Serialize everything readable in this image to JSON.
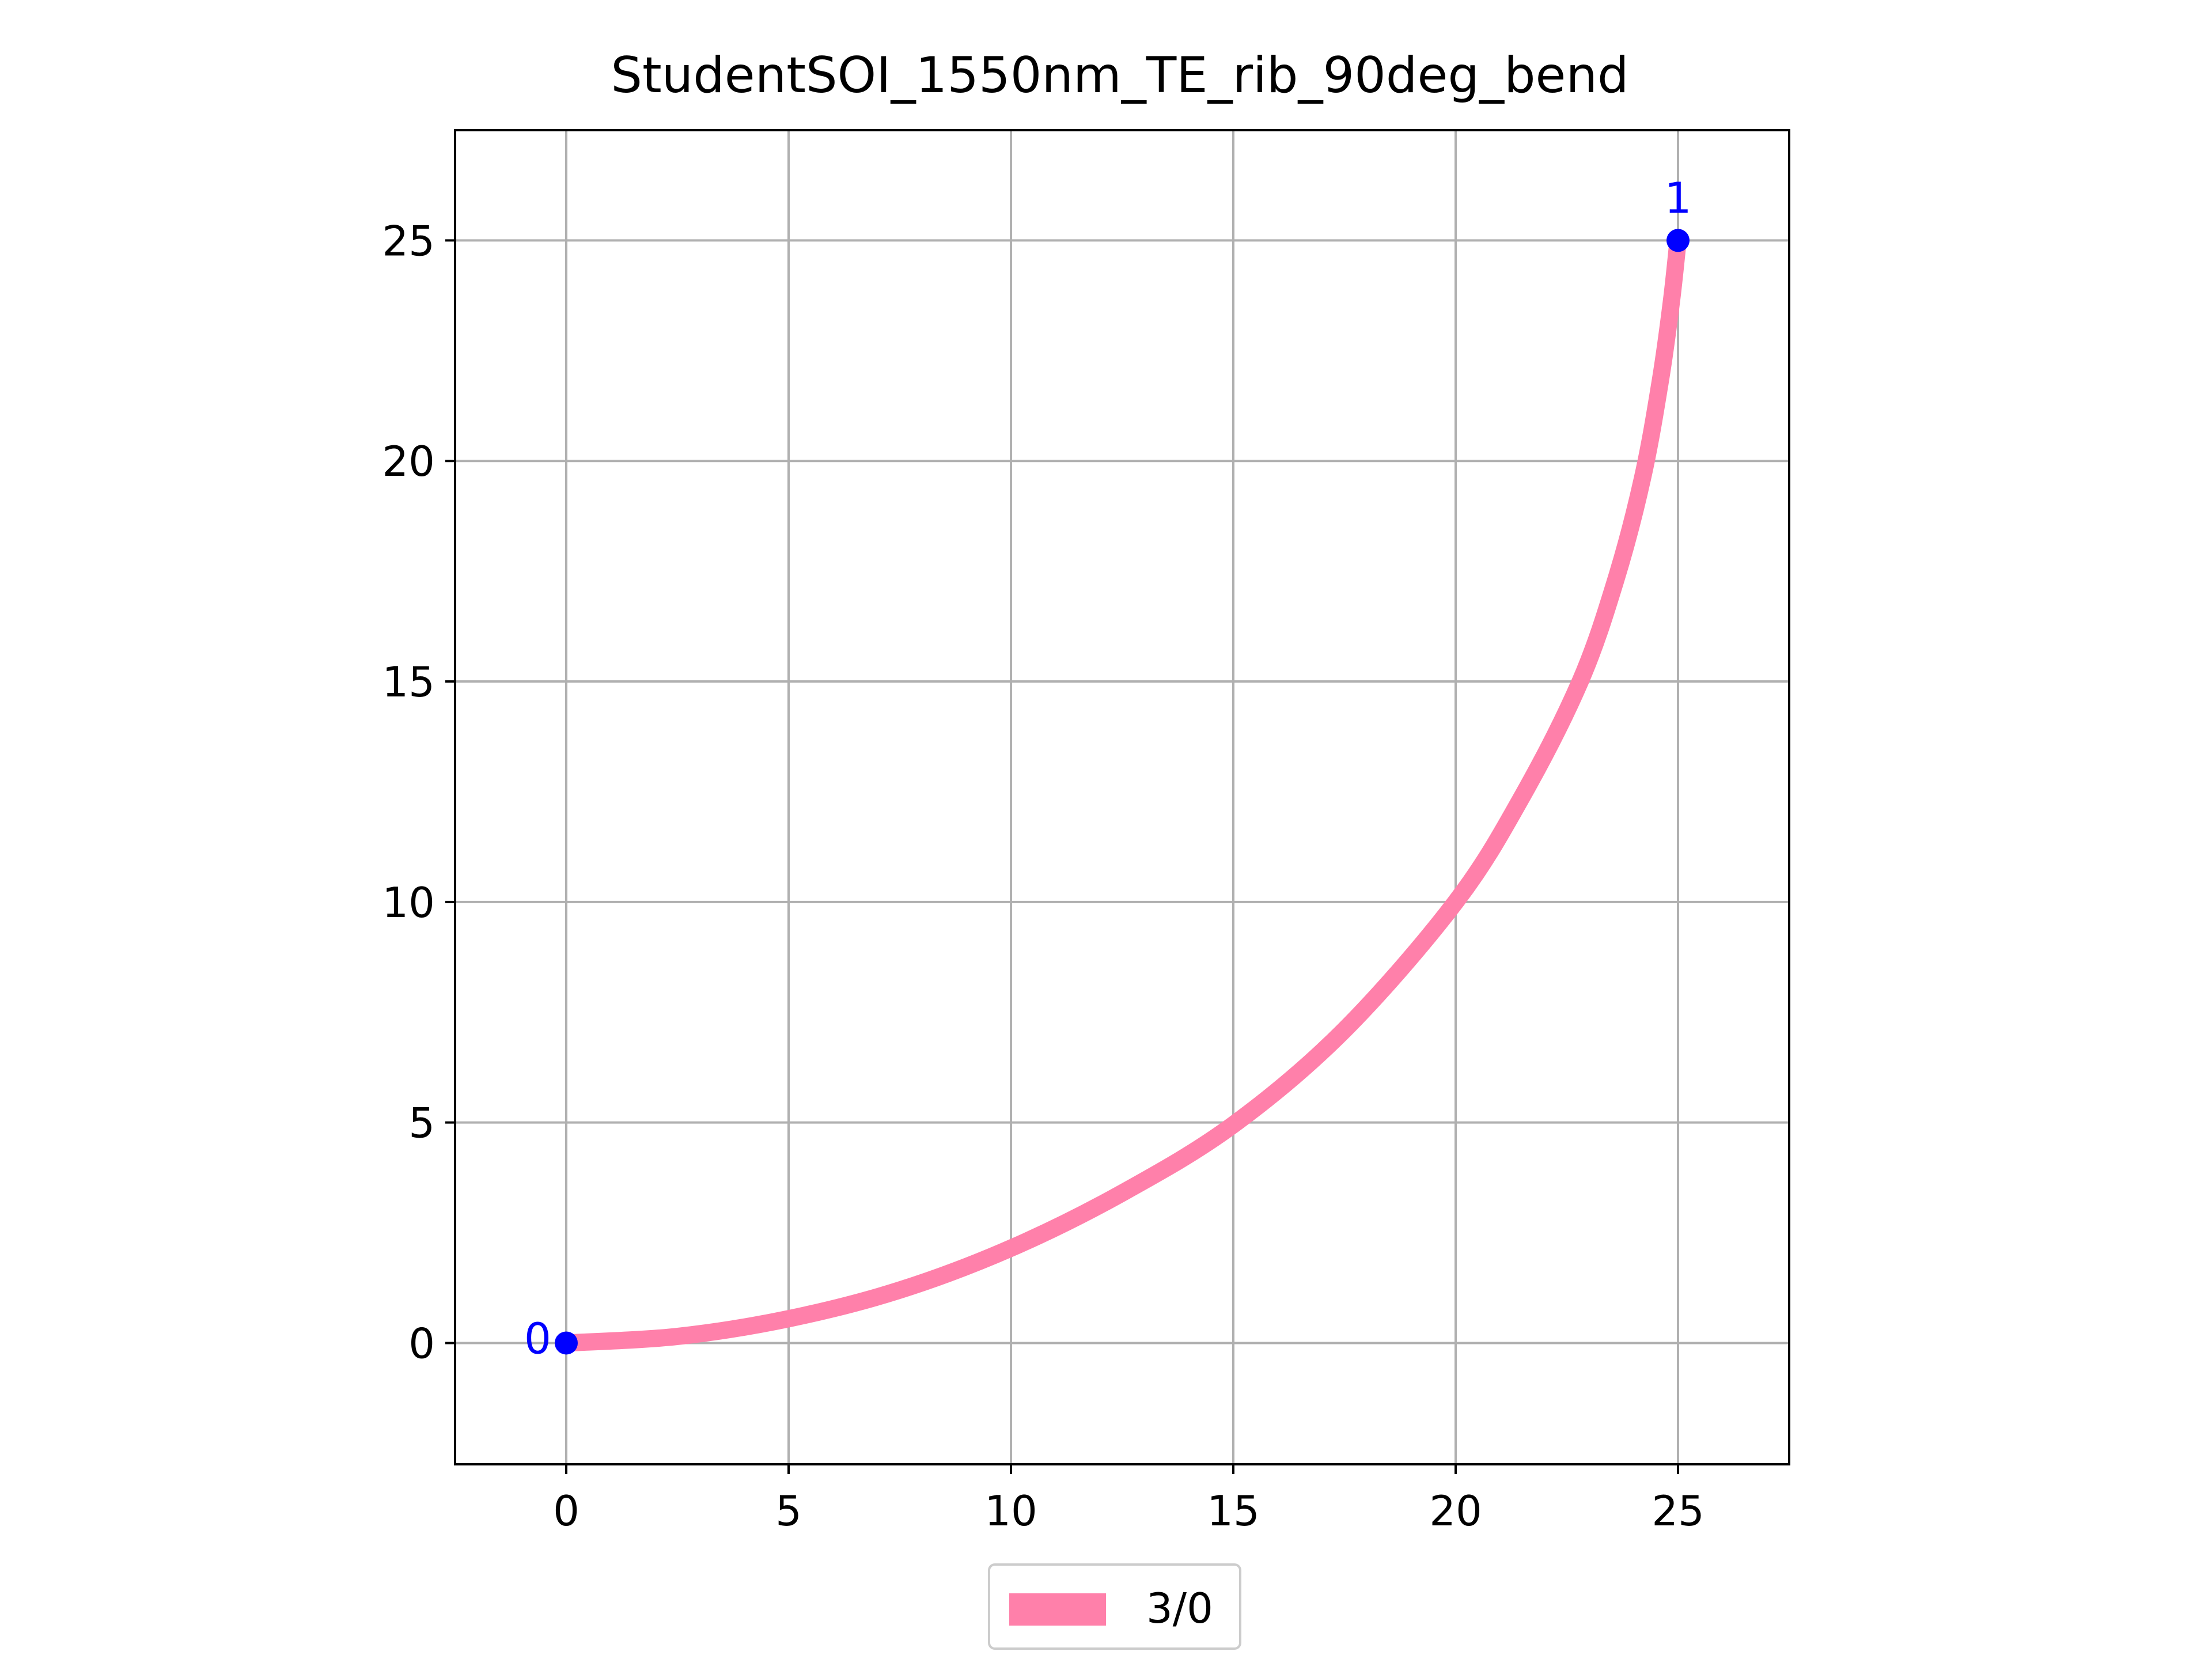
{
  "chart_data": {
    "type": "line",
    "title": "StudentSOI_1550nm_TE_rib_90deg_bend",
    "xlabel": "",
    "ylabel": "",
    "xlim": [
      -2.5,
      27.5
    ],
    "ylim": [
      -2.75,
      27.5
    ],
    "xticks": [
      0,
      5,
      10,
      15,
      20,
      25
    ],
    "yticks": [
      0,
      5,
      10,
      15,
      20,
      25
    ],
    "grid": true,
    "legend_placement": "bottom-center",
    "series": [
      {
        "name": "3/0",
        "color": "#ff80aa",
        "x": [
          0,
          2.5,
          5,
          7.5,
          10,
          12.5,
          15,
          17.5,
          20,
          21.5,
          22.8,
          23.6,
          24.2,
          24.6,
          24.85,
          25
        ],
        "y": [
          0,
          0.15,
          0.55,
          1.2,
          2.15,
          3.4,
          4.95,
          7.1,
          10,
          12.4,
          15,
          17.3,
          19.6,
          21.8,
          23.6,
          25
        ]
      }
    ],
    "ports": [
      {
        "label": "0",
        "x": 0,
        "y": 0,
        "color": "#0000ff"
      },
      {
        "label": "1",
        "x": 25,
        "y": 25,
        "color": "#0000ff"
      }
    ]
  }
}
